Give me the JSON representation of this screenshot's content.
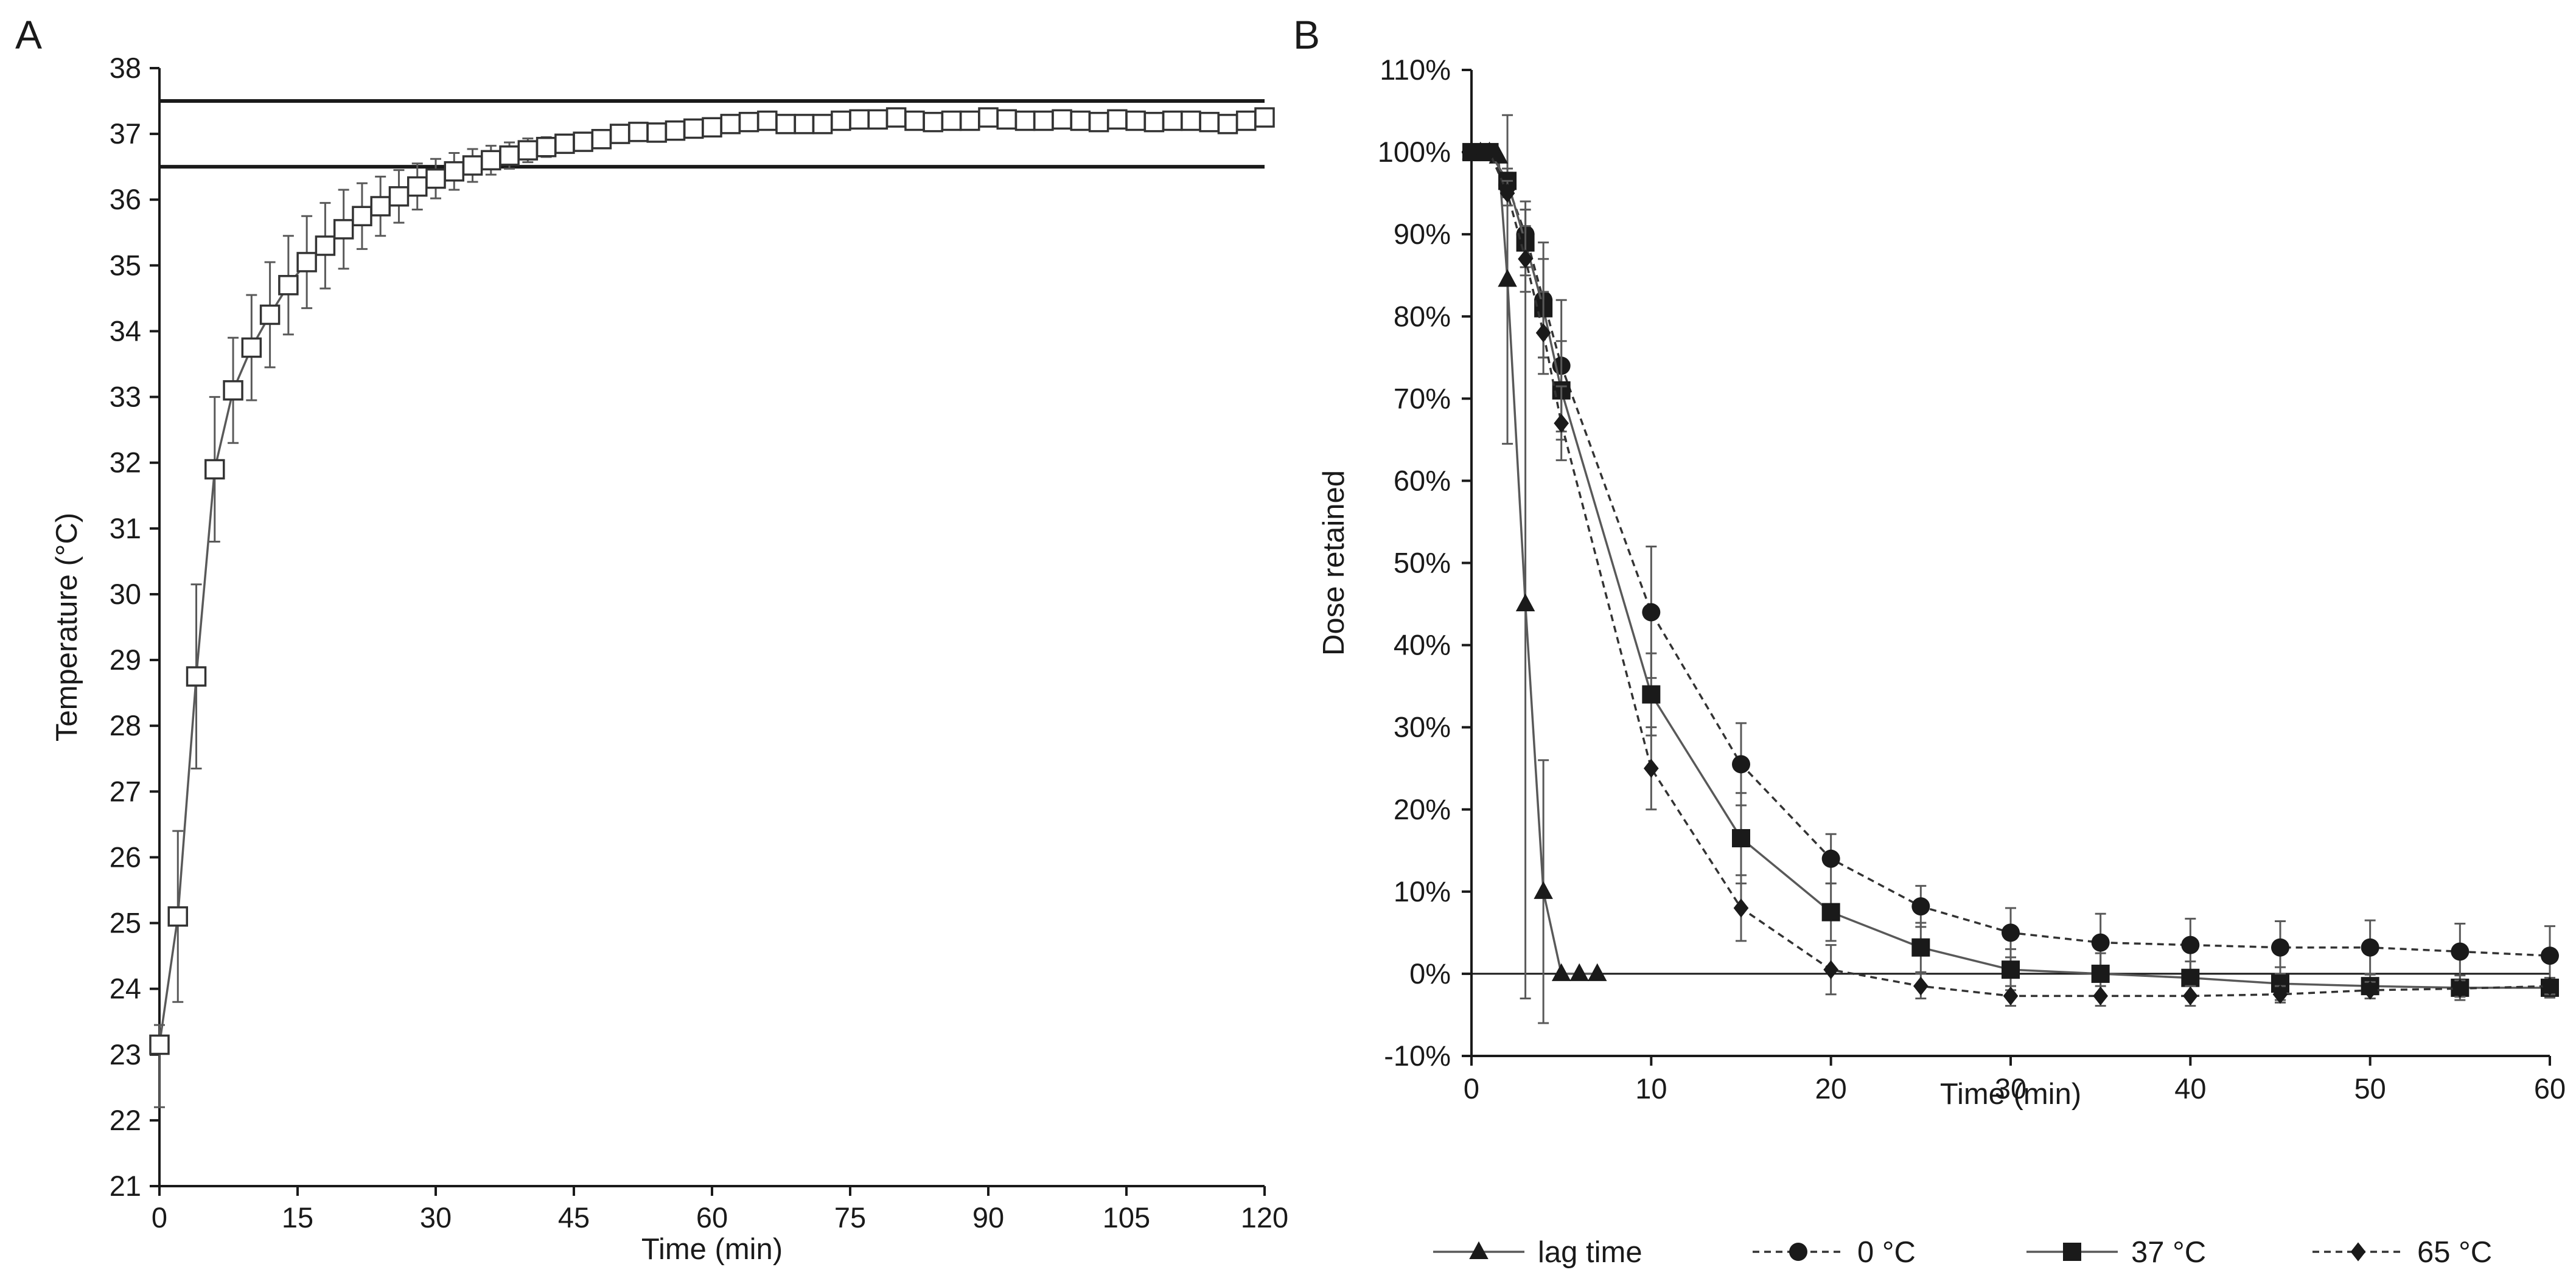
{
  "chart_data": [
    {
      "panel": "A",
      "type": "scatter",
      "xlabel": "Time (min)",
      "ylabel": "Temperature (°C)",
      "xlim": [
        0,
        120
      ],
      "ylim": [
        21,
        38
      ],
      "xticks": [
        0,
        15,
        30,
        45,
        60,
        75,
        90,
        105,
        120
      ],
      "yticks": [
        21,
        22,
        23,
        24,
        25,
        26,
        27,
        28,
        29,
        30,
        31,
        32,
        33,
        34,
        35,
        36,
        37,
        38
      ],
      "grid": false,
      "reference_lines": [
        36.5,
        37.5
      ],
      "series": [
        {
          "name": "Temperature",
          "marker": "open-square",
          "x": [
            0,
            2,
            4,
            6,
            8,
            10,
            12,
            14,
            16,
            18,
            20,
            22,
            24,
            26,
            28,
            30,
            32,
            34,
            36,
            38,
            40,
            42,
            44,
            46,
            48,
            50,
            52,
            54,
            56,
            58,
            60,
            62,
            64,
            66,
            68,
            70,
            72,
            74,
            76,
            78,
            80,
            82,
            84,
            86,
            88,
            90,
            92,
            94,
            96,
            98,
            100,
            102,
            104,
            106,
            108,
            110,
            112,
            114,
            116,
            118,
            120
          ],
          "y": [
            23.15,
            25.1,
            28.75,
            31.9,
            33.1,
            33.75,
            34.25,
            34.7,
            35.05,
            35.3,
            35.55,
            35.75,
            35.9,
            36.05,
            36.2,
            36.32,
            36.43,
            36.52,
            36.6,
            36.67,
            36.75,
            36.8,
            36.85,
            36.88,
            36.92,
            37.0,
            37.03,
            37.02,
            37.05,
            37.08,
            37.1,
            37.15,
            37.18,
            37.2,
            37.15,
            37.15,
            37.15,
            37.2,
            37.22,
            37.22,
            37.25,
            37.2,
            37.18,
            37.2,
            37.2,
            37.25,
            37.22,
            37.2,
            37.2,
            37.22,
            37.2,
            37.18,
            37.22,
            37.2,
            37.18,
            37.2,
            37.2,
            37.18,
            37.15,
            37.2,
            37.25
          ],
          "error_up": [
            0.3,
            1.3,
            1.4,
            1.1,
            0.8,
            0.8,
            0.8,
            0.75,
            0.7,
            0.65,
            0.6,
            0.5,
            0.45,
            0.4,
            0.35,
            0.3,
            0.28,
            0.25,
            0.22,
            0.2,
            0.18,
            0.15,
            0.14,
            0.12,
            0.12,
            0.1,
            0.1,
            0.1,
            0.1,
            0.1,
            0.1,
            0.09,
            0.09,
            0.08,
            0.08,
            0.08,
            0.08,
            0.08,
            0.08,
            0.08,
            0.08,
            0.08,
            0.08,
            0.08,
            0.08,
            0.08,
            0.08,
            0.08,
            0.08,
            0.08,
            0.08,
            0.08,
            0.08,
            0.08,
            0.08,
            0.08,
            0.08,
            0.08,
            0.08,
            0.08,
            0.08
          ],
          "error_down": [
            0.95,
            1.3,
            1.4,
            1.1,
            0.8,
            0.8,
            0.8,
            0.75,
            0.7,
            0.65,
            0.6,
            0.5,
            0.45,
            0.4,
            0.35,
            0.3,
            0.28,
            0.25,
            0.22,
            0.2,
            0.18,
            0.15,
            0.14,
            0.12,
            0.12,
            0.1,
            0.1,
            0.1,
            0.1,
            0.1,
            0.1,
            0.09,
            0.09,
            0.08,
            0.08,
            0.08,
            0.08,
            0.08,
            0.08,
            0.08,
            0.08,
            0.08,
            0.08,
            0.08,
            0.08,
            0.08,
            0.08,
            0.08,
            0.08,
            0.08,
            0.08,
            0.08,
            0.08,
            0.08,
            0.08,
            0.08,
            0.08,
            0.08,
            0.08,
            0.08,
            0.08
          ]
        }
      ]
    },
    {
      "panel": "B",
      "type": "line",
      "xlabel": "Time (min)",
      "ylabel": "Dose retained",
      "xlim": [
        0,
        60
      ],
      "ylim": [
        -10,
        110
      ],
      "xticks": [
        0,
        10,
        20,
        30,
        40,
        50,
        60
      ],
      "yticks": [
        -10,
        0,
        10,
        20,
        30,
        40,
        50,
        60,
        70,
        80,
        90,
        100,
        110
      ],
      "ytick_labels": [
        "-10%",
        "0%",
        "10%",
        "20%",
        "30%",
        "40%",
        "50%",
        "60%",
        "70%",
        "80%",
        "90%",
        "100%",
        "110%"
      ],
      "grid": false,
      "legend_position": "bottom",
      "series": [
        {
          "name": "lag time",
          "marker": "triangle",
          "dash": "solid",
          "x": [
            0,
            0.5,
            1,
            1.5,
            2,
            3,
            4,
            5,
            6,
            7
          ],
          "y": [
            100,
            100,
            100,
            99.5,
            84.5,
            45,
            10,
            0,
            0,
            0
          ],
          "error": [
            0,
            0,
            0,
            0,
            20,
            48,
            16,
            0,
            0,
            0
          ]
        },
        {
          "name": "0 °C",
          "marker": "circle",
          "dash": "dashed",
          "x": [
            0,
            1,
            2,
            3,
            4,
            5,
            10,
            15,
            20,
            25,
            30,
            35,
            40,
            45,
            50,
            55,
            60
          ],
          "y": [
            100,
            100,
            96,
            90,
            82,
            74,
            44,
            25.5,
            14,
            8.2,
            5,
            3.8,
            3.5,
            3.2,
            3.2,
            2.7,
            2.2
          ],
          "error": [
            0,
            0,
            1.5,
            4,
            7,
            8,
            8,
            5,
            3,
            2.5,
            3,
            3.5,
            3.2,
            3.2,
            3.3,
            3.4,
            3.6
          ]
        },
        {
          "name": "37 °C",
          "marker": "square",
          "dash": "solid",
          "x": [
            0,
            1,
            2,
            3,
            4,
            5,
            10,
            15,
            20,
            25,
            30,
            35,
            40,
            45,
            50,
            55,
            60
          ],
          "y": [
            100,
            100,
            96.5,
            89,
            81,
            71,
            34,
            16.5,
            7.5,
            3.2,
            0.5,
            0,
            -0.5,
            -1.2,
            -1.5,
            -1.7,
            -1.7
          ],
          "error": [
            0,
            0,
            1.5,
            4,
            6,
            6,
            5,
            5.5,
            3.5,
            3,
            2.5,
            2.5,
            2,
            2,
            1.5,
            1.5,
            1.2
          ]
        },
        {
          "name": "65 °C",
          "marker": "diamond",
          "dash": "dashed",
          "x": [
            0,
            1,
            2,
            3,
            4,
            5,
            10,
            15,
            20,
            25,
            30,
            35,
            40,
            45,
            50,
            55,
            60
          ],
          "y": [
            100,
            100,
            95,
            87,
            78,
            67,
            25,
            8,
            0.5,
            -1.5,
            -2.7,
            -2.7,
            -2.7,
            -2.5,
            -2,
            -1.8,
            -1.5
          ],
          "error": [
            0,
            0,
            1.5,
            4,
            5,
            4.5,
            5,
            4,
            3,
            1.5,
            1.2,
            1.2,
            1.2,
            1,
            1,
            1,
            1
          ]
        }
      ]
    }
  ]
}
